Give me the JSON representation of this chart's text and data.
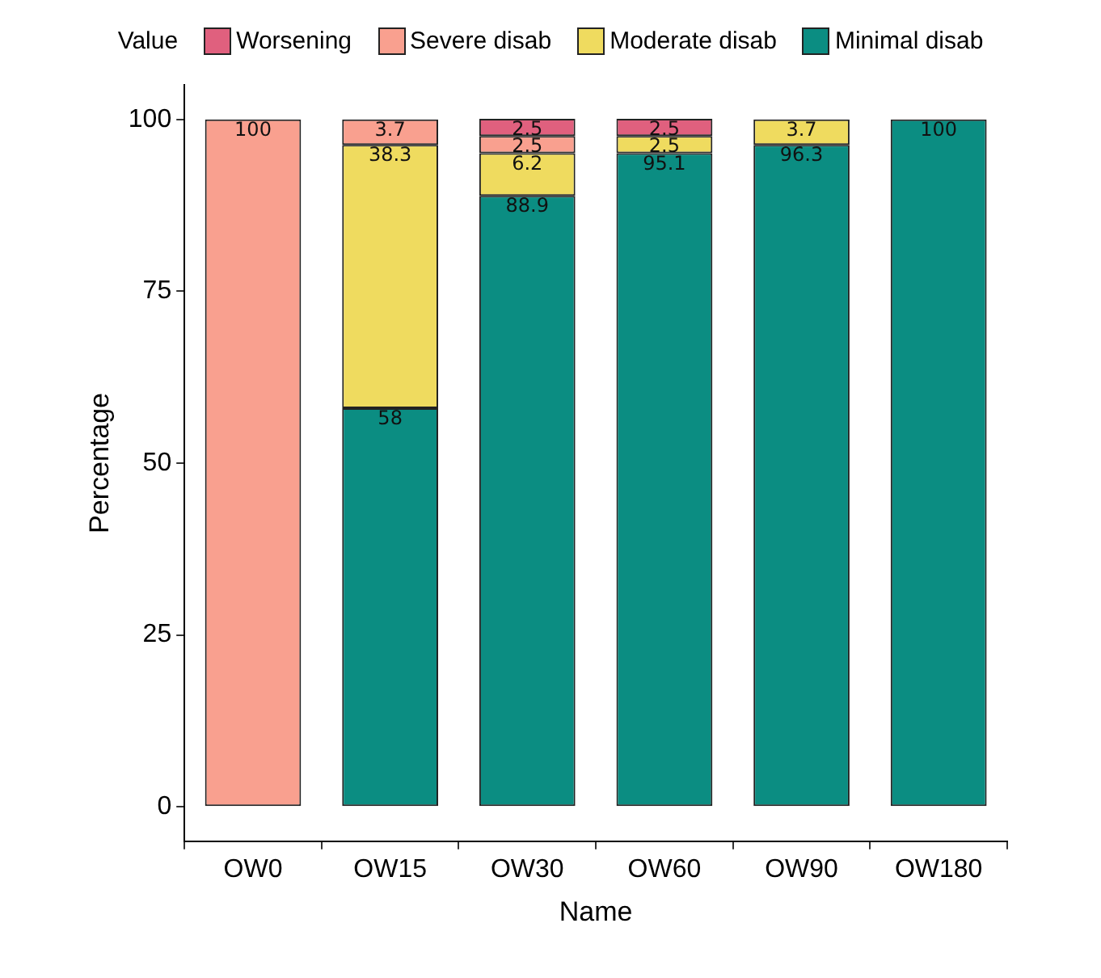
{
  "chart_data": {
    "type": "bar",
    "stacked": true,
    "categories": [
      "OW0",
      "OW15",
      "OW30",
      "OW60",
      "OW90",
      "OW180"
    ],
    "xlabel": "Name",
    "ylabel": "Percentage",
    "legend_title": "Value",
    "legend": "top",
    "grid": false,
    "data_labels": true,
    "ylim": [
      -5,
      105
    ],
    "yticks": [
      0,
      25,
      50,
      75,
      100
    ],
    "series": [
      {
        "name": "Minimal disab",
        "color": "#0b8d82",
        "values": [
          null,
          58,
          88.9,
          95.1,
          96.3,
          100
        ]
      },
      {
        "name": "Moderate disab",
        "color": "#efdb5f",
        "values": [
          null,
          38.3,
          6.2,
          2.5,
          3.7,
          null
        ]
      },
      {
        "name": "Severe disab",
        "color": "#f9a08f",
        "values": [
          100,
          3.7,
          2.5,
          null,
          null,
          null
        ]
      },
      {
        "name": "Worsening",
        "color": "#e0607e",
        "values": [
          null,
          null,
          2.5,
          2.5,
          null,
          null
        ]
      }
    ]
  }
}
